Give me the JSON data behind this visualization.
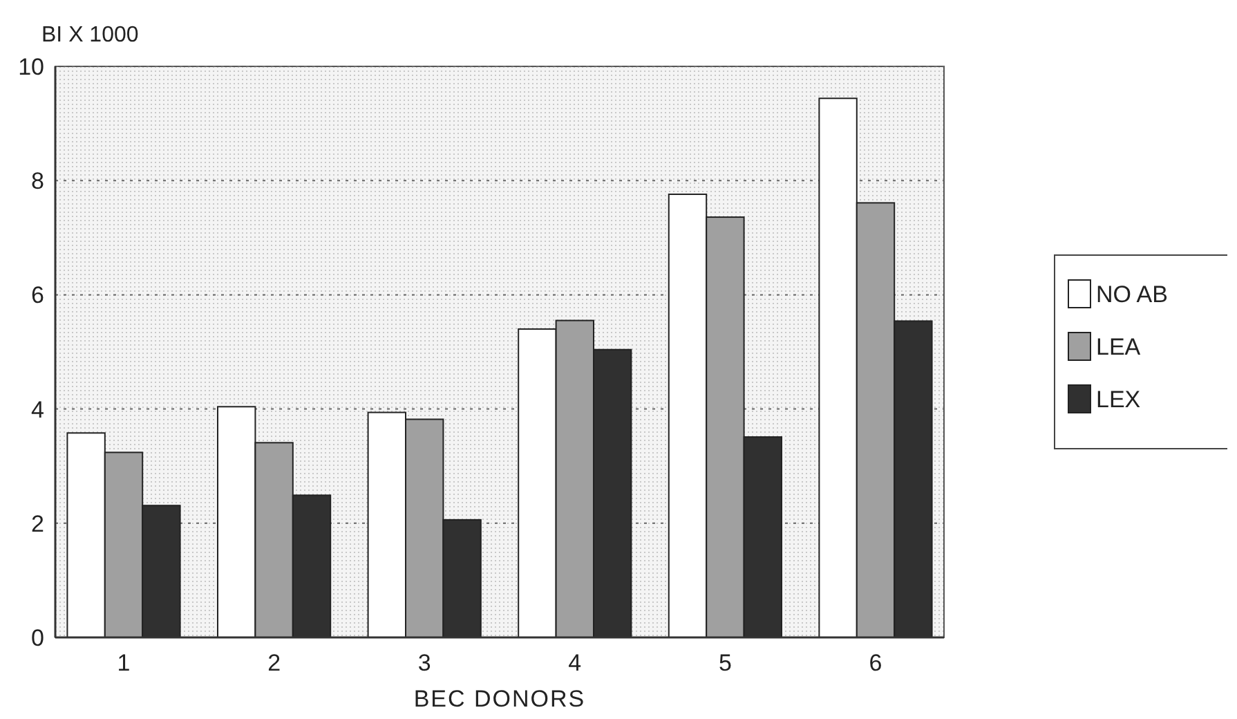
{
  "chart_data": {
    "type": "bar",
    "ylabel": "BI X 1000",
    "xlabel": "BEC DONORS",
    "categories": [
      "1",
      "2",
      "3",
      "4",
      "5",
      "6"
    ],
    "series": [
      {
        "name": "NO AB",
        "color": "#ffffff",
        "values": [
          3.58,
          4.04,
          3.94,
          5.4,
          7.76,
          9.44
        ]
      },
      {
        "name": "LEA",
        "color": "#a0a0a0",
        "values": [
          3.24,
          3.41,
          3.82,
          5.55,
          7.36,
          7.61
        ]
      },
      {
        "name": "LEX",
        "color": "#303030",
        "values": [
          2.31,
          2.49,
          2.06,
          5.04,
          3.51,
          5.54
        ]
      }
    ],
    "ylim": [
      0,
      10
    ],
    "yticks": [
      0,
      2,
      4,
      6,
      8,
      10
    ],
    "grid": "y",
    "legend": "right"
  }
}
